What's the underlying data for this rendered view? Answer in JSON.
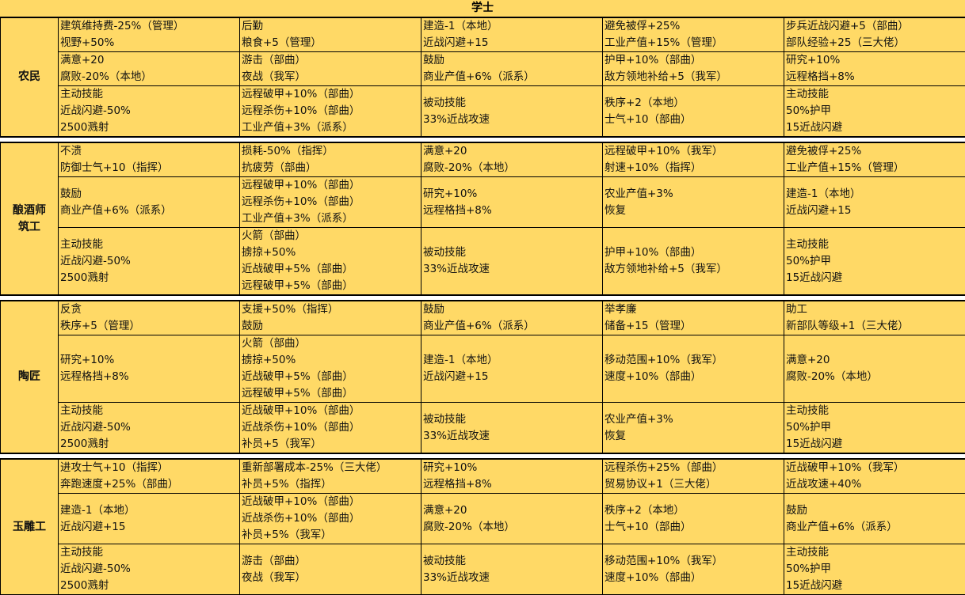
{
  "title": "学士",
  "colors": {
    "cell_background": "#FFD966",
    "border": "#000000",
    "separator": "#FFFFFF"
  },
  "groups": [
    {
      "name": [
        "农民"
      ],
      "rows": [
        [
          [
            "建筑维持费-25%（管理）",
            "视野+50%"
          ],
          [
            "后勤",
            "粮食+5（管理）"
          ],
          [
            "建造-1（本地）",
            "近战闪避+15"
          ],
          [
            "避免被俘+25%",
            "工业产值+15%（管理）"
          ],
          [
            "步兵近战闪避+5（部曲）",
            "部队经验+25（三大佬）"
          ]
        ],
        [
          [
            "满意+20",
            "腐败-20%（本地）"
          ],
          [
            "游击（部曲）",
            "夜战（我军）"
          ],
          [
            "鼓励",
            "商业产值+6%（派系）"
          ],
          [
            "护甲+10%（部曲）",
            "敌方领地补给+5（我军）"
          ],
          [
            "研究+10%",
            "远程格挡+8%"
          ]
        ],
        [
          [
            "主动技能",
            "近战闪避-50%",
            "2500溅射"
          ],
          [
            "远程破甲+10%（部曲）",
            "远程杀伤+10%（部曲）",
            "工业产值+3%（派系）"
          ],
          [
            "被动技能",
            "33%近战攻速"
          ],
          [
            "秩序+2（本地）",
            "士气+10（部曲）"
          ],
          [
            "主动技能",
            "50%护甲",
            "15近战闪避"
          ]
        ]
      ]
    },
    {
      "name": [
        "酿酒师",
        "筑工"
      ],
      "rows": [
        [
          [
            "不溃",
            "防御士气+10（指挥）"
          ],
          [
            "损耗-50%（指挥）",
            "抗疲劳（部曲）"
          ],
          [
            "满意+20",
            "腐败-20%（本地）"
          ],
          [
            "远程破甲+10%（我军）",
            "射速+10%（指挥）"
          ],
          [
            "避免被俘+25%",
            "工业产值+15%（管理）"
          ]
        ],
        [
          [
            "鼓励",
            "商业产值+6%（派系）"
          ],
          [
            "远程破甲+10%（部曲）",
            "远程杀伤+10%（部曲）",
            "工业产值+3%（派系）"
          ],
          [
            "研究+10%",
            "远程格挡+8%"
          ],
          [
            "农业产值+3%",
            "恢复"
          ],
          [
            "建造-1（本地）",
            "近战闪避+15"
          ]
        ],
        [
          [
            "主动技能",
            "近战闪避-50%",
            "2500溅射"
          ],
          [
            "火箭（部曲）",
            "掳掠+50%",
            "近战破甲+5%（部曲）",
            "远程破甲+5%（部曲）"
          ],
          [
            "被动技能",
            "33%近战攻速"
          ],
          [
            "护甲+10%（部曲）",
            "敌方领地补给+5（我军）"
          ],
          [
            "主动技能",
            "50%护甲",
            "15近战闪避"
          ]
        ]
      ]
    },
    {
      "name": [
        "陶匠"
      ],
      "rows": [
        [
          [
            "反贪",
            "秩序+5（管理）"
          ],
          [
            "支援+50%（指挥）",
            "鼓励"
          ],
          [
            "鼓励",
            "商业产值+6%（派系）"
          ],
          [
            "举孝廉",
            "储备+15（管理）"
          ],
          [
            "助工",
            "新部队等级+1（三大佬）"
          ]
        ],
        [
          [
            "研究+10%",
            "远程格挡+8%"
          ],
          [
            "火箭（部曲）",
            "掳掠+50%",
            "近战破甲+5%（部曲）",
            "远程破甲+5%（部曲）"
          ],
          [
            "建造-1（本地）",
            "近战闪避+15"
          ],
          [
            "移动范围+10%（我军）",
            "速度+10%（部曲）"
          ],
          [
            "满意+20",
            "腐败-20%（本地）"
          ]
        ],
        [
          [
            "主动技能",
            "近战闪避-50%",
            "2500溅射"
          ],
          [
            "近战破甲+10%（部曲）",
            "近战杀伤+10%（部曲）",
            "补员+5（我军）"
          ],
          [
            "被动技能",
            "33%近战攻速"
          ],
          [
            "农业产值+3%",
            "恢复"
          ],
          [
            "主动技能",
            "50%护甲",
            "15近战闪避"
          ]
        ]
      ]
    },
    {
      "name": [
        "玉雕工"
      ],
      "rows": [
        [
          [
            "进攻士气+10（指挥）",
            "奔跑速度+25%（部曲）"
          ],
          [
            "重新部署成本-25%（三大佬）",
            "补员+5%（指挥）"
          ],
          [
            "研究+10%",
            "远程格挡+8%"
          ],
          [
            "远程杀伤+25%（部曲）",
            "贸易协议+1（三大佬）"
          ],
          [
            "近战破甲+10%（我军）",
            "近战攻速+40%"
          ]
        ],
        [
          [
            "建造-1（本地）",
            "近战闪避+15"
          ],
          [
            "近战破甲+10%（部曲）",
            "近战杀伤+10%（部曲）",
            "补员+5%（我军）"
          ],
          [
            "满意+20",
            "腐败-20%（本地）"
          ],
          [
            "秩序+2（本地）",
            "士气+10（部曲）"
          ],
          [
            "鼓励",
            "商业产值+6%（派系）"
          ]
        ],
        [
          [
            "主动技能",
            "近战闪避-50%",
            "2500溅射"
          ],
          [
            "游击（部曲）",
            "夜战（我军）"
          ],
          [
            "被动技能",
            "33%近战攻速"
          ],
          [
            "移动范围+10%（我军）",
            "速度+10%（部曲）"
          ],
          [
            "主动技能",
            "50%护甲",
            "15近战闪避"
          ]
        ]
      ]
    }
  ]
}
